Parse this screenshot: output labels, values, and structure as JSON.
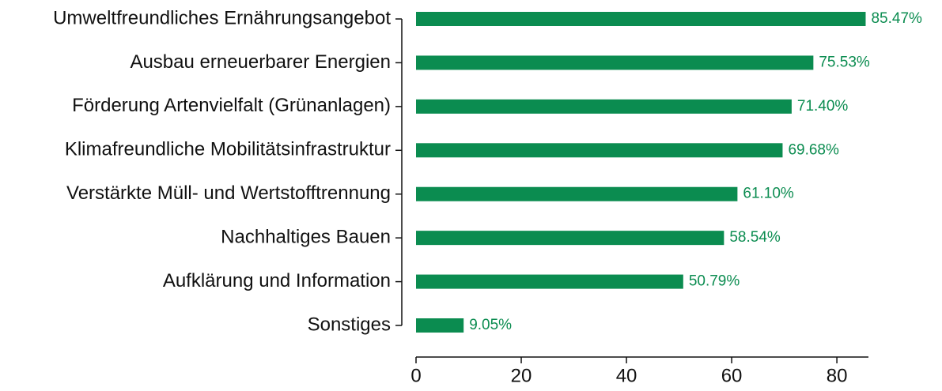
{
  "chart_data": {
    "type": "barh",
    "categories": [
      "Umweltfreundliches Ernährungsangebot",
      "Ausbau erneuerbarer Energien",
      "Förderung Artenvielfalt (Grünanlagen)",
      "Klimafreundliche Mobilitätsinfrastruktur",
      "Verstärkte Müll- und Wertstofftrennung",
      "Nachhaltiges Bauen",
      "Aufklärung und Information",
      "Sonstiges"
    ],
    "values": [
      85.47,
      75.53,
      71.4,
      69.68,
      61.1,
      58.54,
      50.79,
      9.05
    ],
    "value_labels": [
      "85.47%",
      "75.53%",
      "71.40%",
      "69.68%",
      "61.10%",
      "58.54%",
      "50.79%",
      "9.05%"
    ],
    "color": "#0b8c50",
    "xlim": [
      0,
      86
    ],
    "xticks": [
      0,
      20,
      40,
      60,
      80
    ]
  }
}
